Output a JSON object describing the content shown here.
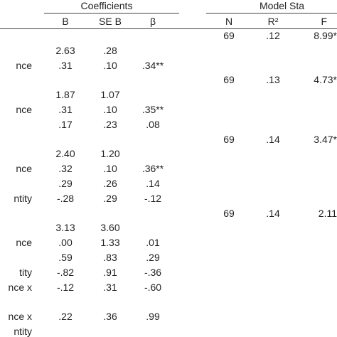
{
  "header": {
    "group1": "Coefficients",
    "group2": "Model Sta",
    "columns": [
      "B",
      "SE B",
      "β",
      "N",
      "R²",
      "F"
    ]
  },
  "table": {
    "rows": [
      [
        null,
        null,
        null,
        null,
        "69",
        ".12",
        "8.99*"
      ],
      [
        null,
        "2.63",
        ".28",
        null,
        null,
        null,
        null
      ],
      [
        "nce",
        ".31",
        ".10",
        ".34**",
        null,
        null,
        null
      ],
      [
        null,
        null,
        null,
        null,
        "69",
        ".13",
        "4.73*"
      ],
      [
        null,
        "1.87",
        "1.07",
        null,
        null,
        null,
        null
      ],
      [
        "nce",
        ".31",
        ".10",
        ".35**",
        null,
        null,
        null
      ],
      [
        null,
        ".17",
        ".23",
        ".08",
        null,
        null,
        null
      ],
      [
        null,
        null,
        null,
        null,
        "69",
        ".14",
        "3.47*"
      ],
      [
        null,
        "2.40",
        "1.20",
        null,
        null,
        null,
        null
      ],
      [
        "nce",
        ".32",
        ".10",
        ".36**",
        null,
        null,
        null
      ],
      [
        null,
        ".29",
        ".26",
        ".14",
        null,
        null,
        null
      ],
      [
        "ntity",
        "-.28",
        ".29",
        "-.12",
        null,
        null,
        null
      ],
      [
        null,
        null,
        null,
        null,
        "69",
        ".14",
        "2.11"
      ],
      [
        null,
        "3.13",
        "3.60",
        null,
        null,
        null,
        null
      ],
      [
        "nce",
        ".00",
        "1.33",
        ".01",
        null,
        null,
        null
      ],
      [
        null,
        ".59",
        ".83",
        ".29",
        null,
        null,
        null
      ],
      [
        "tity",
        "-.82",
        ".91",
        "-.36",
        null,
        null,
        null
      ],
      [
        "nce x",
        "-.12",
        ".31",
        "-.60",
        null,
        null,
        null
      ],
      [
        null,
        null,
        null,
        null,
        null,
        null,
        null
      ],
      [
        "nce x",
        ".22",
        ".36",
        ".99",
        null,
        null,
        null
      ],
      [
        "ntity",
        null,
        null,
        null,
        null,
        null,
        null
      ]
    ]
  }
}
